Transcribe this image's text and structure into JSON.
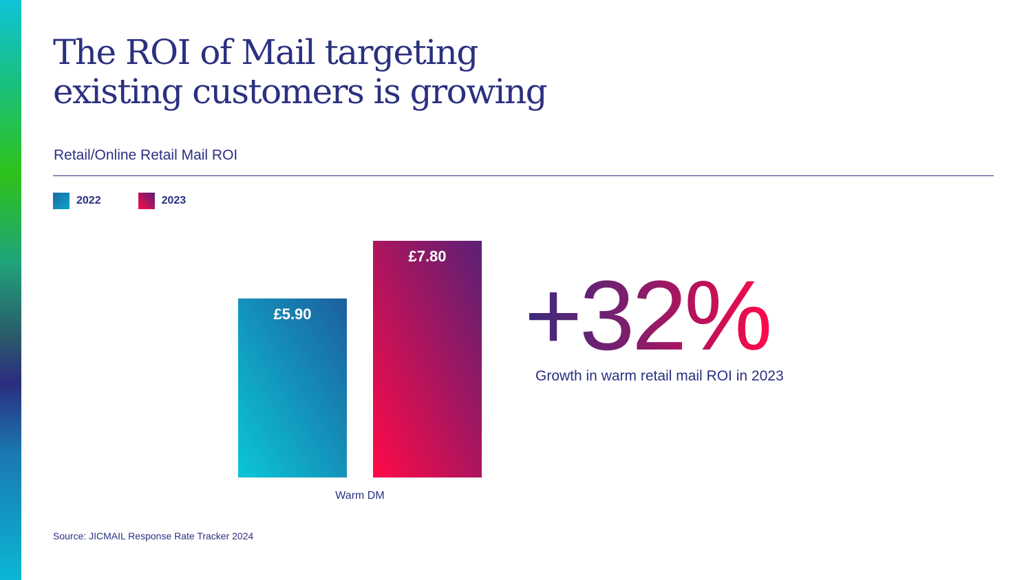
{
  "title_lines": [
    "The ROI of Mail targeting",
    "existing customers is growing"
  ],
  "subtitle": "Retail/Online Retail Mail ROI",
  "big_stat": "+32%",
  "stat_caption": "Growth in warm retail mail ROI in 2023",
  "source": "Source: JICMAIL Response Rate Tracker 2024",
  "colors": {
    "text": "#2b3080",
    "series_2022": [
      "#0bc6d8",
      "#1c5f9e"
    ],
    "series_2023": [
      "#ff0a47",
      "#5a2075"
    ]
  },
  "chart_data": {
    "type": "bar",
    "categories": [
      "Warm DM"
    ],
    "series": [
      {
        "name": "2022",
        "values": [
          5.9
        ],
        "labels": [
          "£5.90"
        ]
      },
      {
        "name": "2023",
        "values": [
          7.8
        ],
        "labels": [
          "£7.80"
        ]
      }
    ],
    "title": "Retail/Online Retail Mail ROI",
    "xlabel": "",
    "ylabel": "",
    "ylim": [
      0,
      7.8
    ],
    "grid": false,
    "legend": "top-left"
  }
}
